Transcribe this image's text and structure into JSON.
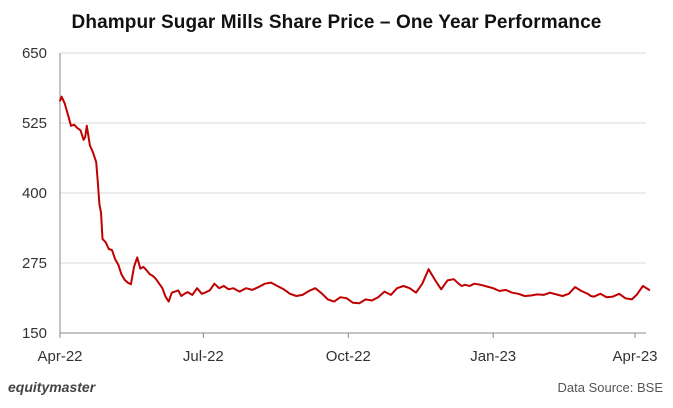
{
  "chart_data": {
    "type": "line",
    "title": "Dhampur Sugar Mills Share Price – One Year Performance",
    "xlabel": "",
    "ylabel": "",
    "ylim": [
      150,
      650
    ],
    "yticks": [
      "650",
      "525",
      "400",
      "275",
      "150"
    ],
    "xticks": [
      "Apr-22",
      "Jul-22",
      "Oct-22",
      "Jan-23",
      "Apr-23"
    ],
    "grid": "horizontal",
    "line_color": "#c00000",
    "series": [
      {
        "x": [
          "2022-04-01",
          "2022-04-02",
          "2022-04-04",
          "2022-04-05",
          "2022-04-06",
          "2022-04-08",
          "2022-04-10",
          "2022-04-12",
          "2022-04-14",
          "2022-04-16",
          "2022-04-17",
          "2022-04-18",
          "2022-04-20",
          "2022-04-22",
          "2022-04-24",
          "2022-04-25",
          "2022-04-26",
          "2022-04-27",
          "2022-04-28",
          "2022-04-30",
          "2022-05-02",
          "2022-05-04",
          "2022-05-06",
          "2022-05-08",
          "2022-05-10",
          "2022-05-12",
          "2022-05-14",
          "2022-05-16",
          "2022-05-18",
          "2022-05-20",
          "2022-05-22",
          "2022-05-24",
          "2022-05-26",
          "2022-05-28",
          "2022-05-30",
          "2022-06-01",
          "2022-06-03",
          "2022-06-05",
          "2022-06-07",
          "2022-06-09",
          "2022-06-11",
          "2022-06-13",
          "2022-06-15",
          "2022-06-17",
          "2022-06-19",
          "2022-06-21",
          "2022-06-24",
          "2022-06-27",
          "2022-06-30",
          "2022-07-02",
          "2022-07-05",
          "2022-07-08",
          "2022-07-11",
          "2022-07-14",
          "2022-07-17",
          "2022-07-20",
          "2022-07-24",
          "2022-07-28",
          "2022-08-01",
          "2022-08-05",
          "2022-08-09",
          "2022-08-13",
          "2022-08-17",
          "2022-08-21",
          "2022-08-25",
          "2022-08-29",
          "2022-09-02",
          "2022-09-06",
          "2022-09-10",
          "2022-09-14",
          "2022-09-18",
          "2022-09-22",
          "2022-09-26",
          "2022-09-30",
          "2022-10-04",
          "2022-10-08",
          "2022-10-12",
          "2022-10-16",
          "2022-10-20",
          "2022-10-24",
          "2022-10-28",
          "2022-11-01",
          "2022-11-05",
          "2022-11-09",
          "2022-11-13",
          "2022-11-17",
          "2022-11-21",
          "2022-11-25",
          "2022-11-29",
          "2022-12-03",
          "2022-12-07",
          "2022-12-10",
          "2022-12-12",
          "2022-12-14",
          "2022-12-17",
          "2022-12-20",
          "2022-12-24",
          "2022-12-28",
          "2023-01-01",
          "2023-01-05",
          "2023-01-09",
          "2023-01-13",
          "2023-01-17",
          "2023-01-21",
          "2023-01-25",
          "2023-01-29",
          "2023-02-02",
          "2023-02-06",
          "2023-02-10",
          "2023-02-14",
          "2023-02-18",
          "2023-02-22",
          "2023-02-26",
          "2023-03-02",
          "2023-03-04",
          "2023-03-06",
          "2023-03-10",
          "2023-03-14",
          "2023-03-18",
          "2023-03-22",
          "2023-03-26",
          "2023-03-30",
          "2023-04-02",
          "2023-04-06",
          "2023-04-10"
        ],
        "y": [
          565,
          572,
          560,
          550,
          540,
          520,
          522,
          516,
          512,
          495,
          500,
          520,
          485,
          472,
          455,
          420,
          380,
          365,
          318,
          312,
          300,
          298,
          282,
          272,
          255,
          245,
          240,
          237,
          268,
          285,
          265,
          268,
          262,
          255,
          252,
          246,
          238,
          230,
          215,
          206,
          222,
          224,
          226,
          216,
          220,
          223,
          218,
          230,
          220,
          222,
          226,
          238,
          230,
          234,
          228,
          230,
          224,
          230,
          227,
          232,
          238,
          240,
          234,
          228,
          220,
          216,
          218,
          225,
          230,
          221,
          210,
          206,
          214,
          212,
          204,
          203,
          210,
          208,
          214,
          224,
          218,
          230,
          234,
          230,
          222,
          238,
          264,
          245,
          228,
          244,
          246,
          238,
          234,
          236,
          234,
          238,
          236,
          233,
          230,
          225,
          227,
          222,
          220,
          216,
          217,
          219,
          218,
          222,
          219,
          216,
          220,
          232,
          225,
          220,
          216,
          215,
          220,
          214,
          215,
          220,
          212,
          210,
          218,
          234,
          227
        ],
        "mode": "dates"
      }
    ]
  },
  "footer": {
    "brand": "equitymaster",
    "source": "Data Source: BSE"
  }
}
